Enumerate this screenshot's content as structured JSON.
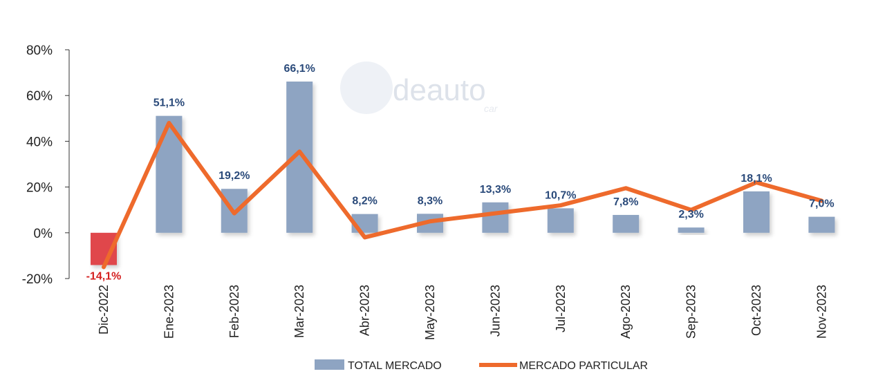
{
  "watermark": {
    "main": "deauto",
    "sub": "car"
  },
  "chart_data": {
    "type": "bar",
    "categories": [
      "Dic-2022",
      "Ene-2023",
      "Feb-2023",
      "Mar-2023",
      "Abr-2023",
      "May-2023",
      "Jun-2023",
      "Jul-2023",
      "Ago-2023",
      "Sep-2023",
      "Oct-2023",
      "Nov-2023"
    ],
    "series": [
      {
        "name": "TOTAL MERCADO",
        "type": "bar",
        "values": [
          -14.1,
          51.1,
          19.2,
          66.1,
          8.2,
          8.3,
          13.3,
          10.7,
          7.8,
          2.3,
          18.1,
          7.0
        ],
        "labels": [
          "-14,1%",
          "51,1%",
          "19,2%",
          "66,1%",
          "8,2%",
          "8,3%",
          "13,3%",
          "10,7%",
          "7,8%",
          "2,3%",
          "18,1%",
          "7,0%"
        ],
        "color": "#8ea4c2",
        "negative_color": "#e0474c",
        "label_color": "#2a4a7a",
        "negative_label_color": "#d42020"
      },
      {
        "name": "MERCADO PARTICULAR",
        "type": "line",
        "values": [
          -15.0,
          48.0,
          8.5,
          35.5,
          -2.0,
          5.0,
          8.5,
          12.0,
          19.5,
          10.0,
          22.0,
          14.0
        ],
        "color": "#ee6a2c"
      }
    ],
    "yticks": [
      "80%",
      "60%",
      "40%",
      "20%",
      "0%",
      "-20%"
    ],
    "ytick_values": [
      80,
      60,
      40,
      20,
      0,
      -20
    ],
    "negative_tick_color": "#d42020",
    "ylim": [
      -20,
      80
    ],
    "grid": false,
    "legend_position": "bottom"
  }
}
